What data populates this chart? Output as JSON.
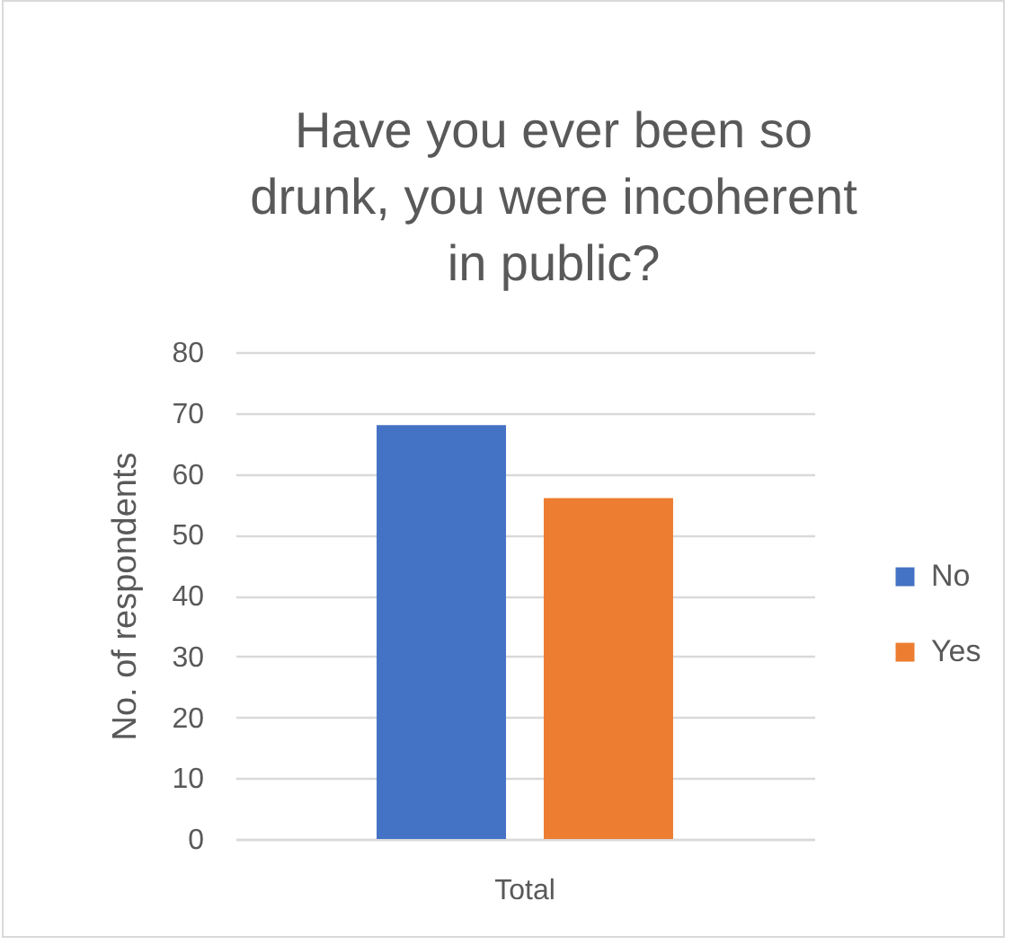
{
  "chart_data": {
    "type": "bar",
    "title": "Have you ever been so drunk, you were incoherent in public?",
    "ylabel": "No. of respondents",
    "categories": [
      "Total"
    ],
    "series": [
      {
        "name": "No",
        "color": "#4472c4",
        "values": [
          68
        ]
      },
      {
        "name": "Yes",
        "color": "#ed7d31",
        "values": [
          56
        ]
      }
    ],
    "ylim": [
      0,
      80
    ],
    "yticks": [
      0,
      10,
      20,
      30,
      40,
      50,
      60,
      70,
      80
    ],
    "grid": "y",
    "legend": "right"
  }
}
